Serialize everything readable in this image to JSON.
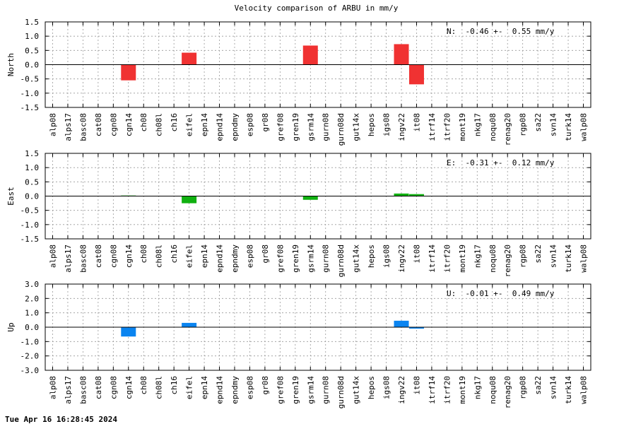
{
  "title": "Velocity comparison of ARBU in mm/y",
  "timestamp": "Tue Apr 16 16:28:45 2024",
  "colors": {
    "north": "#f03232",
    "east": "#10b010",
    "up": "#0a84f0",
    "grid": "#999999"
  },
  "chart_data": [
    {
      "type": "bar",
      "ylabel": "North",
      "ylim": [
        -1.5,
        1.5
      ],
      "yticks": [
        "1.5",
        "1.0",
        "0.5",
        "0.0",
        "-0.5",
        "-1.0",
        "-1.5"
      ],
      "grid": true,
      "annotation": "N:  -0.46 +-  0.55 mm/y",
      "categories": [
        "alp08",
        "alps17",
        "basc08",
        "cat08",
        "cgn08",
        "cgn14",
        "ch08",
        "ch08l",
        "ch16",
        "eifel",
        "epn14",
        "epnd14",
        "epndmy",
        "esp08",
        "gr08",
        "gref08",
        "gren19",
        "gsrm14",
        "gurn08",
        "gurn08d",
        "gut14x",
        "hepos",
        "igs08",
        "ingv22",
        "it08",
        "itrf14",
        "itrf20",
        "mont19",
        "nkg17",
        "noqu08",
        "renag20",
        "rgp08",
        "sa22",
        "svn14",
        "turk14",
        "walp08"
      ],
      "values": [
        0,
        0,
        0,
        0,
        0,
        -0.55,
        0,
        0,
        0,
        0.42,
        0,
        0,
        0,
        0,
        0,
        0,
        0,
        0.67,
        0,
        0,
        0,
        0,
        0,
        0.72,
        -0.69,
        0,
        0,
        0,
        0,
        0,
        0,
        0,
        0,
        0,
        0,
        0
      ]
    },
    {
      "type": "bar",
      "ylabel": "East",
      "ylim": [
        -1.5,
        1.5
      ],
      "yticks": [
        "1.5",
        "1.0",
        "0.5",
        "0.0",
        "-0.5",
        "-1.0",
        "-1.5"
      ],
      "grid": true,
      "annotation": "E:  -0.31 +-  0.12 mm/y",
      "categories": [
        "alp08",
        "alps17",
        "basc08",
        "cat08",
        "cgn08",
        "cgn14",
        "ch08",
        "ch08l",
        "ch16",
        "eifel",
        "epn14",
        "epnd14",
        "epndmy",
        "esp08",
        "gr08",
        "gref08",
        "gren19",
        "gsrm14",
        "gurn08",
        "gurn08d",
        "gut14x",
        "hepos",
        "igs08",
        "ingv22",
        "it08",
        "itrf14",
        "itrf20",
        "mont19",
        "nkg17",
        "noqu08",
        "renag20",
        "rgp08",
        "sa22",
        "svn14",
        "turk14",
        "walp08"
      ],
      "values": [
        0,
        0,
        0,
        0,
        0,
        0.02,
        0,
        0,
        0,
        -0.25,
        0,
        0,
        0,
        0,
        0,
        0,
        0,
        -0.13,
        0,
        0,
        0,
        0,
        0,
        0.09,
        0.07,
        0,
        0,
        0,
        0,
        0,
        0,
        0,
        0,
        0,
        0,
        0
      ]
    },
    {
      "type": "bar",
      "ylabel": "Up",
      "ylim": [
        -3.0,
        3.0
      ],
      "yticks": [
        "3.0",
        "2.0",
        "1.0",
        "0.0",
        "-1.0",
        "-2.0",
        "-3.0"
      ],
      "grid": true,
      "annotation": "U:  -0.01 +-  0.49 mm/y",
      "categories": [
        "alp08",
        "alps17",
        "basc08",
        "cat08",
        "cgn08",
        "cgn14",
        "ch08",
        "ch08l",
        "ch16",
        "eifel",
        "epn14",
        "epnd14",
        "epndmy",
        "esp08",
        "gr08",
        "gref08",
        "gren19",
        "gsrm14",
        "gurn08",
        "gurn08d",
        "gut14x",
        "hepos",
        "igs08",
        "ingv22",
        "it08",
        "itrf14",
        "itrf20",
        "mont19",
        "nkg17",
        "noqu08",
        "renag20",
        "rgp08",
        "sa22",
        "svn14",
        "turk14",
        "walp08"
      ],
      "values": [
        0,
        0,
        0,
        0,
        0,
        -0.65,
        0,
        0,
        0,
        0.3,
        0,
        0,
        0,
        0,
        0,
        0,
        0,
        0,
        0,
        0,
        0,
        0,
        0,
        0.45,
        -0.1,
        0,
        0,
        0,
        0,
        0,
        0,
        0,
        0,
        0,
        0,
        0
      ]
    }
  ]
}
